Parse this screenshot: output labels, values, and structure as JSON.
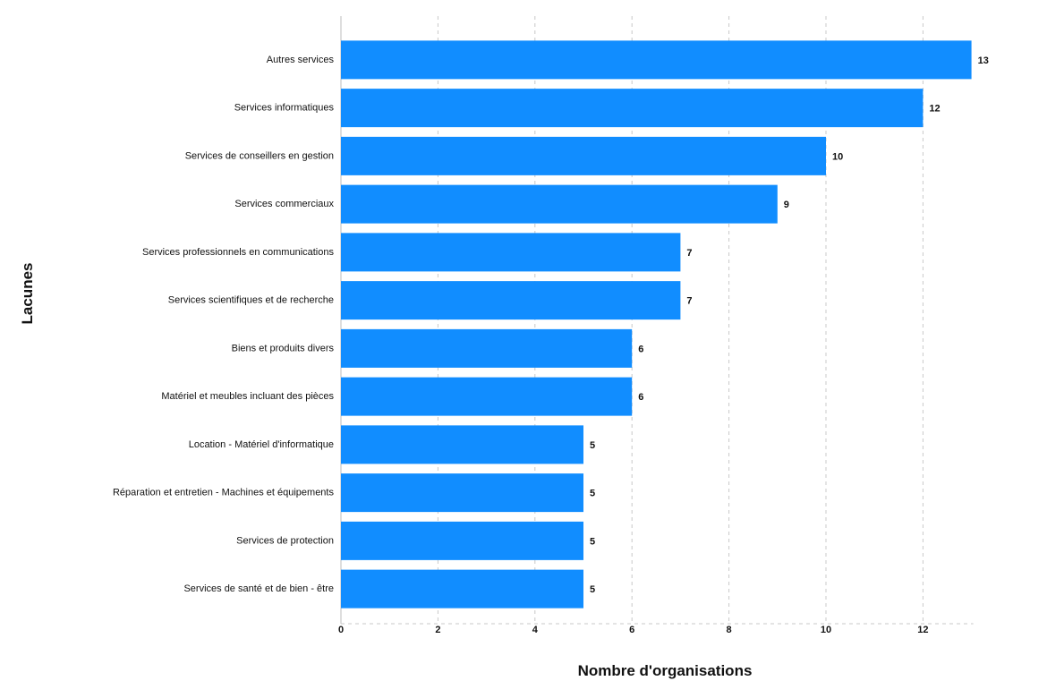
{
  "chart_data": {
    "type": "bar",
    "orientation": "horizontal",
    "categories": [
      "Autres services",
      "Services informatiques",
      "Services de conseillers en gestion",
      "Services commerciaux",
      "Services professionnels en communications",
      "Services scientifiques et de recherche",
      "Biens et produits divers",
      "Matériel et meubles incluant des pièces",
      "Location - Matériel d'informatique",
      "Réparation et entretien - Machines et équipements",
      "Services de protection",
      "Services de santé et de bien - être"
    ],
    "values": [
      13,
      12,
      10,
      9,
      7,
      7,
      6,
      6,
      5,
      5,
      5,
      5
    ],
    "xlabel": "Nombre d'organisations",
    "ylabel": "Lacunes",
    "xlim": [
      0,
      13
    ],
    "x_ticks": [
      0,
      2,
      4,
      6,
      8,
      10,
      12
    ],
    "grid": true,
    "legend": "none",
    "bar_color": "#118dff"
  }
}
